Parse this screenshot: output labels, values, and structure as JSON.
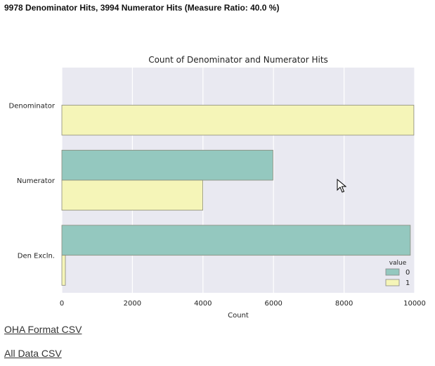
{
  "summary": "9978 Denominator Hits, 3994 Numerator Hits (Measure Ratio: 40.0 %)",
  "chart_data": {
    "type": "bar",
    "orientation": "horizontal",
    "title": "Count of Denominator and Numerator Hits",
    "xlabel": "Count",
    "ylabel": "",
    "categories": [
      "Denominator",
      "Numerator",
      "Den Excln."
    ],
    "series": [
      {
        "name": "0",
        "color": "#94c8bf",
        "values": [
          0,
          5984,
          9878
        ]
      },
      {
        "name": "1",
        "color": "#f5f5b8",
        "values": [
          9978,
          3994,
          100
        ]
      }
    ],
    "xlim": [
      0,
      10000
    ],
    "xticks": [
      0,
      2000,
      4000,
      6000,
      8000,
      10000
    ],
    "legend_title": "value",
    "legend_position": "bottom-right",
    "grid": true,
    "background": "#e9e9f1"
  },
  "links": [
    {
      "label": "OHA Format CSV"
    },
    {
      "label": "All Data CSV"
    }
  ]
}
